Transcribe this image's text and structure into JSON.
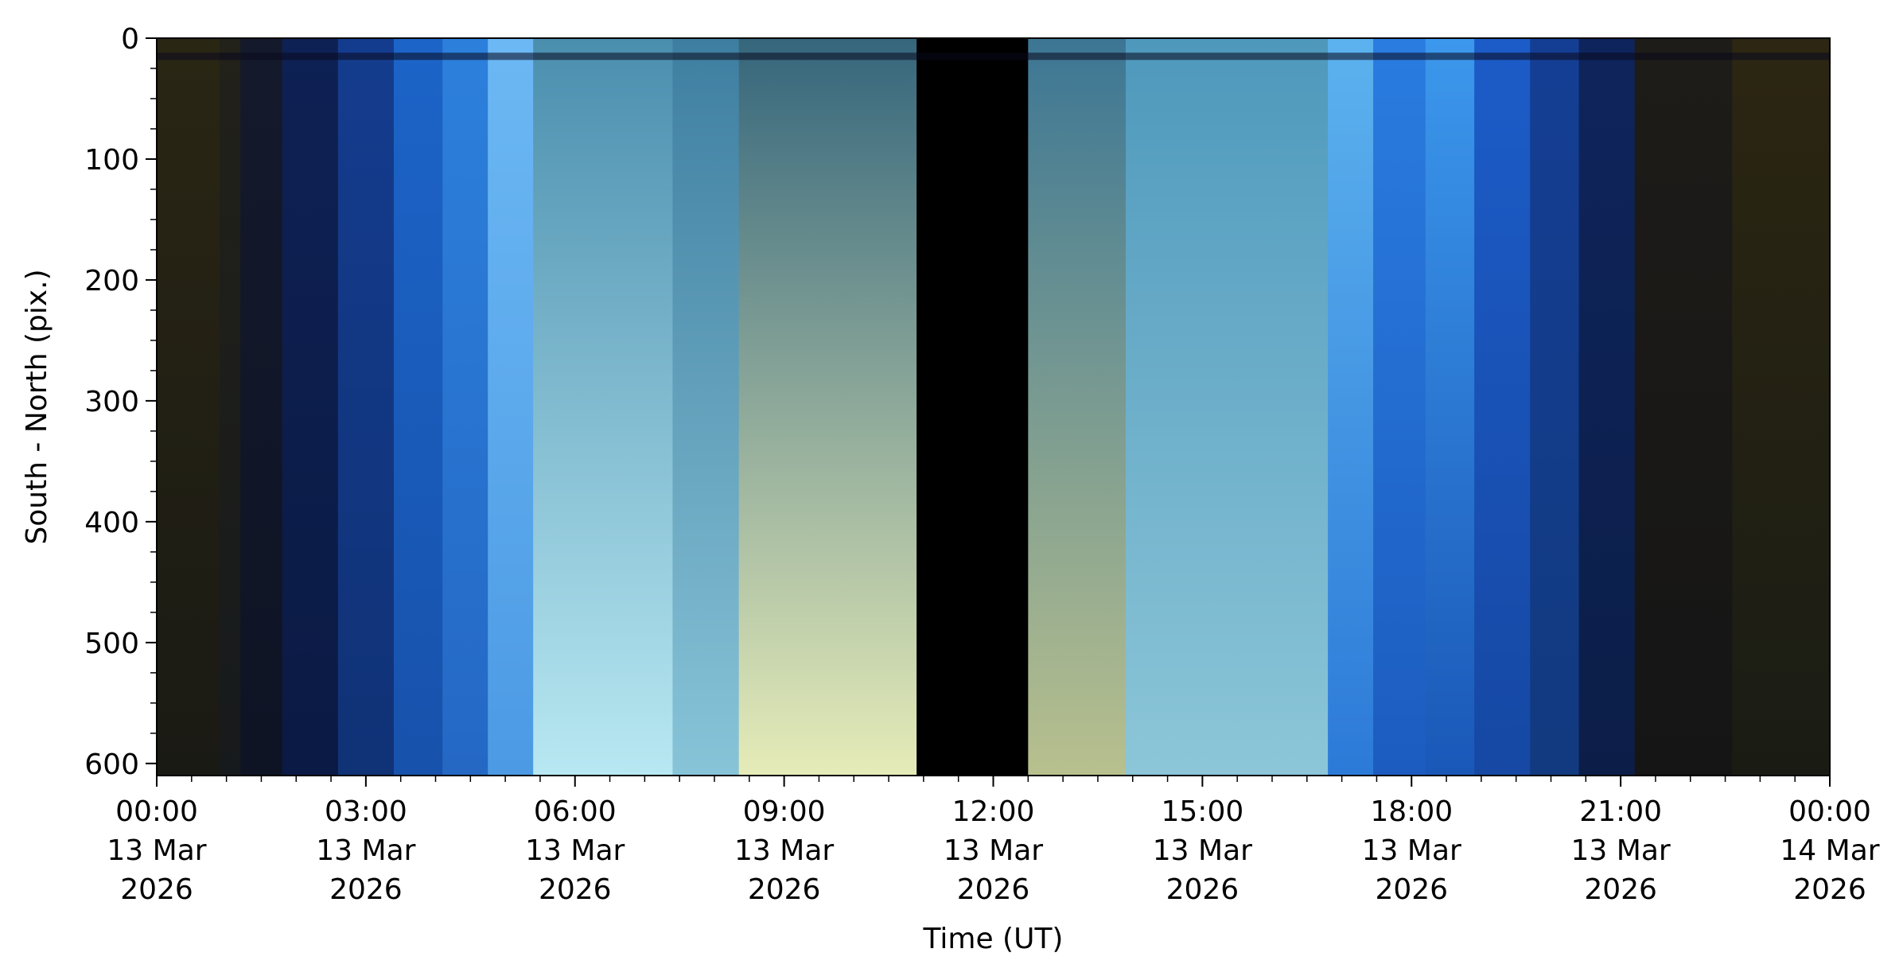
{
  "chart_data": {
    "type": "heatmap",
    "title": "",
    "xlabel": "Time (UT)",
    "ylabel": "South - North (pix.)",
    "x_range": [
      "2026-03-13 00:00",
      "2026-03-14 00:00"
    ],
    "ylim": [
      610,
      0
    ],
    "y_inverted": true,
    "x_ticks": [
      {
        "hour": 0,
        "line1": "00:00",
        "line2": "13 Mar",
        "line3": "2026"
      },
      {
        "hour": 3,
        "line1": "03:00",
        "line2": "13 Mar",
        "line3": "2026"
      },
      {
        "hour": 6,
        "line1": "06:00",
        "line2": "13 Mar",
        "line3": "2026"
      },
      {
        "hour": 9,
        "line1": "09:00",
        "line2": "13 Mar",
        "line3": "2026"
      },
      {
        "hour": 12,
        "line1": "12:00",
        "line2": "13 Mar",
        "line3": "2026"
      },
      {
        "hour": 15,
        "line1": "15:00",
        "line2": "13 Mar",
        "line3": "2026"
      },
      {
        "hour": 18,
        "line1": "18:00",
        "line2": "13 Mar",
        "line3": "2026"
      },
      {
        "hour": 21,
        "line1": "21:00",
        "line2": "13 Mar",
        "line3": "2026"
      },
      {
        "hour": 24,
        "line1": "00:00",
        "line2": "14 Mar",
        "line3": "2026"
      }
    ],
    "y_ticks": [
      {
        "value": 0,
        "label": "0"
      },
      {
        "value": 100,
        "label": "100"
      },
      {
        "value": 200,
        "label": "200"
      },
      {
        "value": 300,
        "label": "300"
      },
      {
        "value": 400,
        "label": "400"
      },
      {
        "value": 500,
        "label": "500"
      },
      {
        "value": 600,
        "label": "600"
      }
    ],
    "bands": [
      {
        "t0": 0.0,
        "t1": 0.9,
        "top": "#2a2614",
        "bottom": "#1a1a14"
      },
      {
        "t0": 0.9,
        "t1": 1.2,
        "top": "#22211a",
        "bottom": "#171a1c"
      },
      {
        "t0": 1.2,
        "t1": 1.8,
        "top": "#141a2c",
        "bottom": "#0e1424"
      },
      {
        "t0": 1.8,
        "t1": 2.6,
        "top": "#0e2154",
        "bottom": "#0b1a44"
      },
      {
        "t0": 2.6,
        "t1": 3.4,
        "top": "#143c8e",
        "bottom": "#103276"
      },
      {
        "t0": 3.4,
        "t1": 4.1,
        "top": "#1c64c8",
        "bottom": "#1752ac"
      },
      {
        "t0": 4.1,
        "t1": 4.75,
        "top": "#2c80dc",
        "bottom": "#2468c4"
      },
      {
        "t0": 4.75,
        "t1": 5.4,
        "top": "#6cb8f4",
        "bottom": "#4c9ae4"
      },
      {
        "t0": 5.4,
        "t1": 7.4,
        "top": "#4a8eae",
        "bottom": "#b8e8f2"
      },
      {
        "t0": 7.4,
        "t1": 8.35,
        "top": "#3e7ea0",
        "bottom": "#88c4d8"
      },
      {
        "t0": 8.35,
        "t1": 10.9,
        "top": "#35667c",
        "bottom": "#e6ecb8"
      },
      {
        "t0": 10.9,
        "t1": 12.5,
        "top": "#000000",
        "bottom": "#000000"
      },
      {
        "t0": 12.5,
        "t1": 13.9,
        "top": "#3c7694",
        "bottom": "#b8c08e"
      },
      {
        "t0": 13.9,
        "t1": 16.8,
        "top": "#4e98bc",
        "bottom": "#8cc6d8"
      },
      {
        "t0": 16.8,
        "t1": 17.45,
        "top": "#5cb2ee",
        "bottom": "#2c7ad8"
      },
      {
        "t0": 17.45,
        "t1": 18.2,
        "top": "#2a7ce0",
        "bottom": "#1c5cc0"
      },
      {
        "t0": 18.2,
        "t1": 18.9,
        "top": "#3c98ec",
        "bottom": "#1a58b8"
      },
      {
        "t0": 18.9,
        "t1": 19.7,
        "top": "#1c5cc8",
        "bottom": "#1648a4"
      },
      {
        "t0": 19.7,
        "t1": 20.4,
        "top": "#143e94",
        "bottom": "#123a80"
      },
      {
        "t0": 20.4,
        "t1": 21.2,
        "top": "#0e245c",
        "bottom": "#0c1e48"
      },
      {
        "t0": 21.2,
        "t1": 22.6,
        "top": "#1e1c18",
        "bottom": "#151516"
      },
      {
        "t0": 22.6,
        "t1": 24.0,
        "top": "#2c2612",
        "bottom": "#1a1c14"
      }
    ]
  }
}
